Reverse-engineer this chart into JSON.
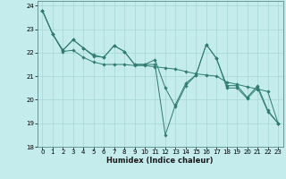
{
  "xlabel": "Humidex (Indice chaleur)",
  "background_color": "#c5ecec",
  "grid_color": "#aad8d8",
  "line_color": "#2e7d6e",
  "marker_color": "#2e7d6e",
  "xlim": [
    -0.5,
    23.5
  ],
  "ylim": [
    18,
    24.2
  ],
  "yticks": [
    18,
    19,
    20,
    21,
    22,
    23,
    24
  ],
  "xticks": [
    0,
    1,
    2,
    3,
    4,
    5,
    6,
    7,
    8,
    9,
    10,
    11,
    12,
    13,
    14,
    15,
    16,
    17,
    18,
    19,
    20,
    21,
    22,
    23
  ],
  "series": [
    [
      23.8,
      22.8,
      22.1,
      22.55,
      22.2,
      21.85,
      21.8,
      22.3,
      22.05,
      21.5,
      21.5,
      21.7,
      20.5,
      19.7,
      20.6,
      21.05,
      22.35,
      21.75,
      20.6,
      20.6,
      20.1,
      20.6,
      19.55,
      19.0
    ],
    [
      23.8,
      22.8,
      22.05,
      22.1,
      21.8,
      21.6,
      21.5,
      21.5,
      21.5,
      21.45,
      21.45,
      21.4,
      21.35,
      21.3,
      21.2,
      21.1,
      21.05,
      21.0,
      20.75,
      20.65,
      20.55,
      20.45,
      20.35,
      19.0
    ],
    [
      23.8,
      22.8,
      22.1,
      22.55,
      22.2,
      21.9,
      21.8,
      22.3,
      22.05,
      21.5,
      21.5,
      21.5,
      18.5,
      19.8,
      20.7,
      21.05,
      22.35,
      21.75,
      20.5,
      20.5,
      20.05,
      20.5,
      19.5,
      19.0
    ]
  ]
}
